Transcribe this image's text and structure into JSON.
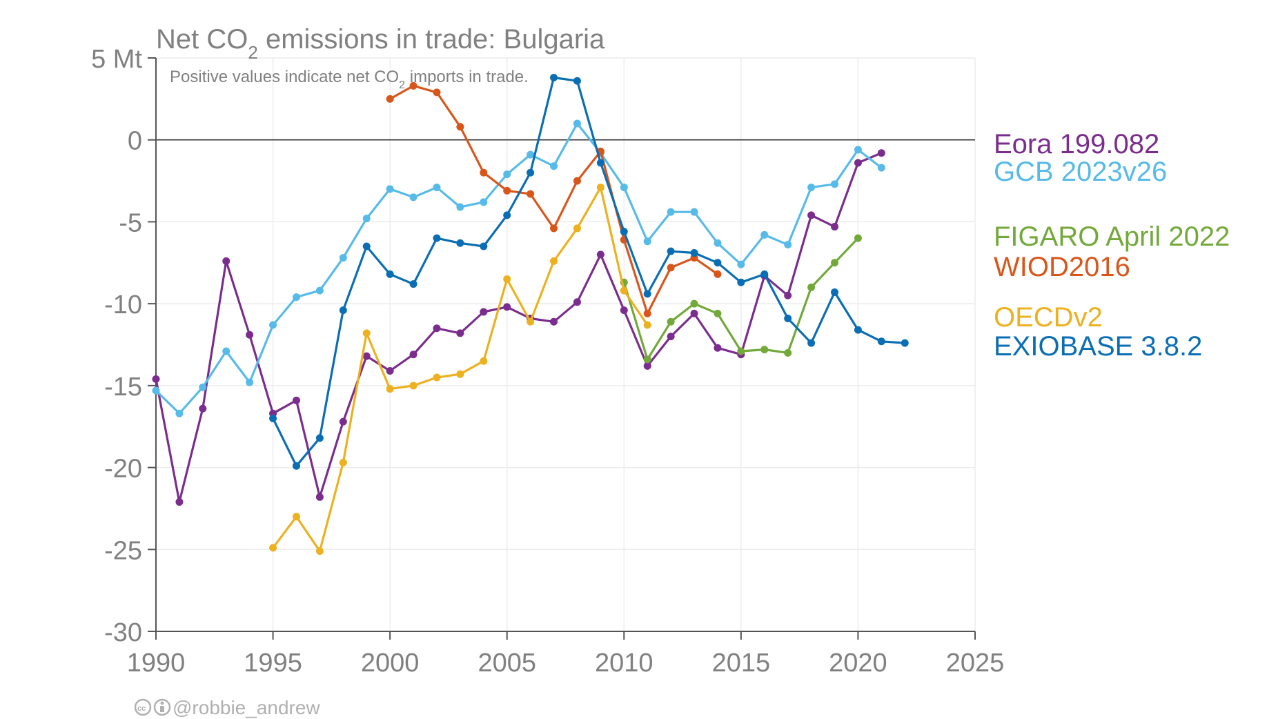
{
  "chart_data": {
    "type": "line",
    "title": "Net CO₂ emissions in trade: Bulgaria",
    "subtitle": "Positive values indicate net CO₂ imports in trade.",
    "unit_label": "5 Mt",
    "xlim": [
      1990,
      2025
    ],
    "ylim": [
      -30,
      5
    ],
    "x_ticks": [
      1990,
      1995,
      2000,
      2005,
      2010,
      2015,
      2020,
      2025
    ],
    "y_ticks": [
      5,
      0,
      -5,
      -10,
      -15,
      -20,
      -25,
      -30
    ],
    "y_tick_labels": [
      "5 Mt",
      "0",
      "-5",
      "-10",
      "-15",
      "-20",
      "-25",
      "-30"
    ],
    "zero_line": true,
    "grid": true,
    "legend_position": "right",
    "series": [
      {
        "name": "Eora 199.082",
        "color": "#7b2d8e",
        "x": [
          1990,
          1991,
          1992,
          1993,
          1994,
          1995,
          1996,
          1997,
          1998,
          1999,
          2000,
          2001,
          2002,
          2003,
          2004,
          2005,
          2006,
          2007,
          2008,
          2009,
          2010,
          2011,
          2012,
          2013,
          2014,
          2015,
          2016,
          2017,
          2018,
          2019,
          2020,
          2021
        ],
        "values": [
          -14.6,
          -22.1,
          -16.4,
          -7.4,
          -11.9,
          -16.7,
          -15.9,
          -21.8,
          -17.2,
          -13.2,
          -14.1,
          -13.1,
          -11.5,
          -11.8,
          -10.5,
          -10.2,
          -10.9,
          -11.1,
          -9.9,
          -7.0,
          -10.4,
          -13.8,
          -12.0,
          -10.6,
          -12.7,
          -13.1,
          -8.3,
          -9.5,
          -4.6,
          -5.3,
          -1.4,
          -0.8
        ]
      },
      {
        "name": "GCB 2023v26",
        "color": "#56bbe8",
        "x": [
          1990,
          1991,
          1992,
          1993,
          1994,
          1995,
          1996,
          1997,
          1998,
          1999,
          2000,
          2001,
          2002,
          2003,
          2004,
          2005,
          2006,
          2007,
          2008,
          2009,
          2010,
          2011,
          2012,
          2013,
          2014,
          2015,
          2016,
          2017,
          2018,
          2019,
          2020,
          2021
        ],
        "values": [
          -15.3,
          -16.7,
          -15.1,
          -12.9,
          -14.8,
          -11.3,
          -9.6,
          -9.2,
          -7.2,
          -4.8,
          -3.0,
          -3.5,
          -2.9,
          -4.1,
          -3.8,
          -2.1,
          -0.9,
          -1.6,
          1.0,
          -0.8,
          -2.9,
          -6.2,
          -4.4,
          -4.4,
          -6.3,
          -7.6,
          -5.8,
          -6.4,
          -2.9,
          -2.7,
          -0.6,
          -1.7
        ]
      },
      {
        "name": "FIGARO April 2022",
        "color": "#72a939",
        "x": [
          2010,
          2011,
          2012,
          2013,
          2014,
          2015,
          2016,
          2017,
          2018,
          2019,
          2020
        ],
        "values": [
          -8.7,
          -13.4,
          -11.1,
          -10.0,
          -10.6,
          -12.9,
          -12.8,
          -13.0,
          -9.0,
          -7.5,
          -6.0
        ]
      },
      {
        "name": "WIOD2016",
        "color": "#d9561a",
        "x": [
          2000,
          2001,
          2002,
          2003,
          2004,
          2005,
          2006,
          2007,
          2008,
          2009,
          2010,
          2011,
          2012,
          2013,
          2014
        ],
        "values": [
          2.5,
          3.3,
          2.9,
          0.8,
          -2.0,
          -3.1,
          -3.3,
          -5.4,
          -2.5,
          -0.7,
          -6.1,
          -10.6,
          -7.8,
          -7.2,
          -8.2
        ]
      },
      {
        "name": "OECDv2",
        "color": "#edb120",
        "x": [
          1995,
          1996,
          1997,
          1998,
          1999,
          2000,
          2001,
          2002,
          2003,
          2004,
          2005,
          2006,
          2007,
          2008,
          2009,
          2010,
          2011
        ],
        "values": [
          -24.9,
          -23.0,
          -25.1,
          -19.7,
          -11.8,
          -15.2,
          -15.0,
          -14.5,
          -14.3,
          -13.5,
          -8.5,
          -11.1,
          -7.4,
          -5.4,
          -2.9,
          -9.2,
          -11.3
        ]
      },
      {
        "name": "EXIOBASE 3.8.2",
        "color": "#0a6eb4",
        "x": [
          1995,
          1996,
          1997,
          1998,
          1999,
          2000,
          2001,
          2002,
          2003,
          2004,
          2005,
          2006,
          2007,
          2008,
          2009,
          2010,
          2011,
          2012,
          2013,
          2014,
          2015,
          2016,
          2017,
          2018,
          2019,
          2020,
          2021,
          2022
        ],
        "values": [
          -17.0,
          -19.9,
          -18.2,
          -10.4,
          -6.5,
          -8.2,
          -8.8,
          -6.0,
          -6.3,
          -6.5,
          -4.6,
          -2.0,
          3.8,
          3.6,
          -1.4,
          -5.6,
          -9.4,
          -6.8,
          -6.9,
          -7.5,
          -8.7,
          -8.2,
          -10.9,
          -12.4,
          -9.3,
          -11.6,
          -12.3,
          -12.4
        ]
      }
    ],
    "legend_order": [
      "Eora 199.082",
      "GCB 2023v26",
      "FIGARO April 2022",
      "WIOD2016",
      "OECDv2",
      "EXIOBASE 3.8.2"
    ],
    "credit": "@robbie_andrew"
  }
}
